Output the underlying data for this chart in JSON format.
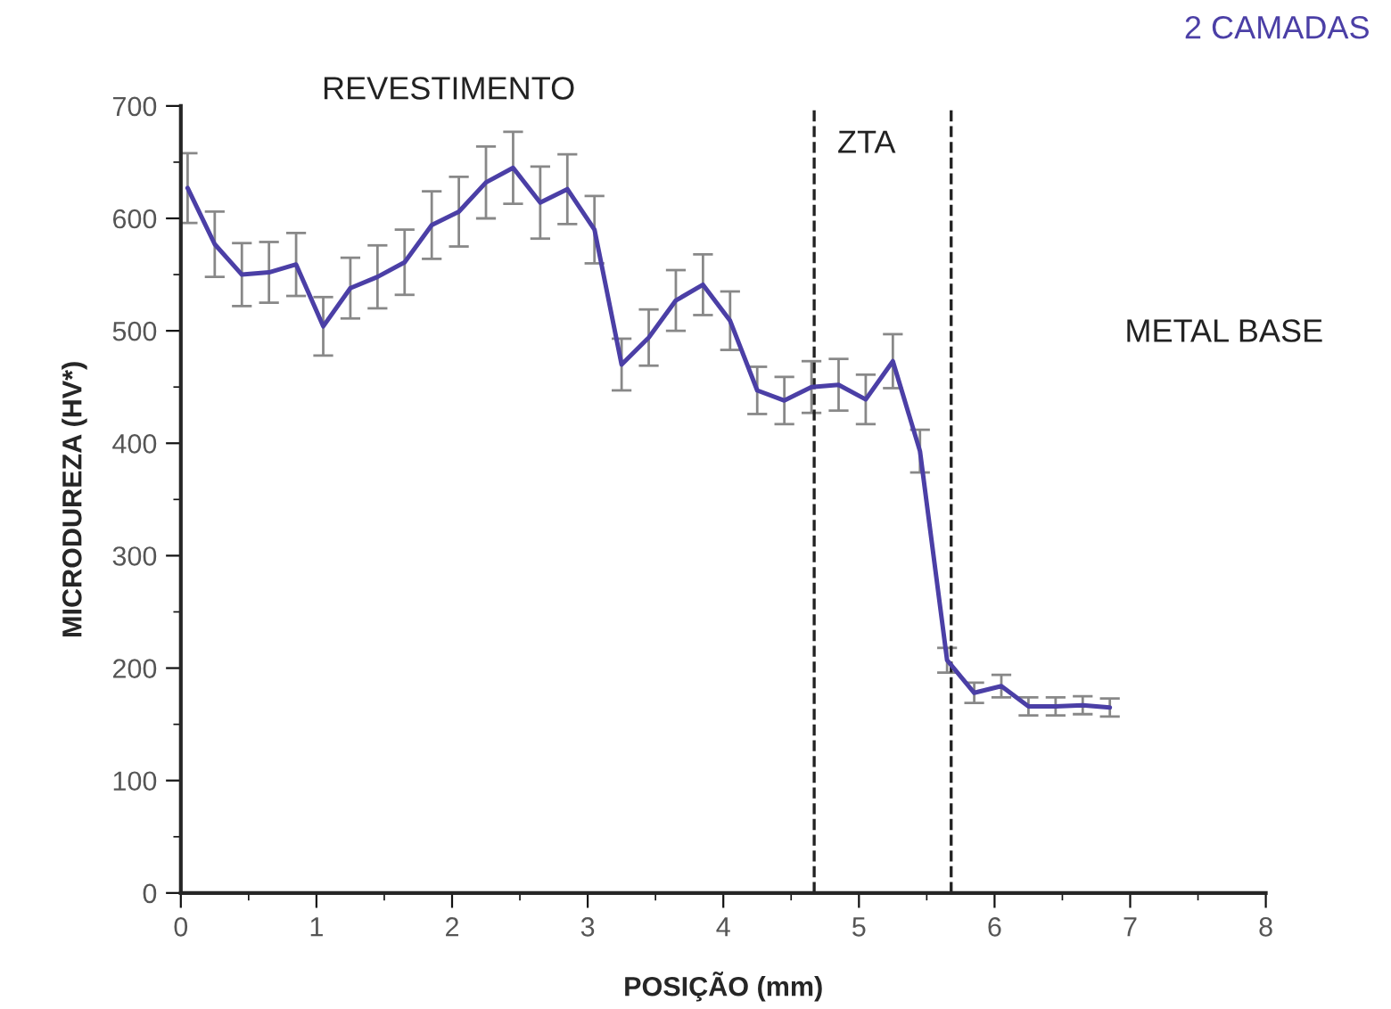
{
  "chart_data": {
    "type": "line",
    "xlabel": "POSIÇÃO (mm)",
    "ylabel": "MICRODUREZA (HV*)",
    "x": [
      0.05,
      0.25,
      0.45,
      0.65,
      0.85,
      1.05,
      1.25,
      1.45,
      1.65,
      1.85,
      2.05,
      2.25,
      2.45,
      2.65,
      2.85,
      3.05,
      3.25,
      3.45,
      3.65,
      3.85,
      4.05,
      4.25,
      4.45,
      4.65,
      4.85,
      5.05,
      5.25,
      5.45,
      5.65,
      5.85,
      6.05,
      6.25,
      6.45,
      6.65,
      6.85
    ],
    "series": [
      {
        "name": "2 CAMADAS",
        "color": "#4b3fa6",
        "values": [
          627,
          577,
          550,
          552,
          559,
          504,
          538,
          548,
          561,
          594,
          606,
          632,
          645,
          614,
          626,
          590,
          470,
          494,
          527,
          541,
          509,
          447,
          438,
          450,
          452,
          439,
          473,
          393,
          207,
          178,
          184,
          166,
          166,
          167,
          165
        ],
        "errors": [
          31,
          29,
          28,
          27,
          28,
          26,
          27,
          28,
          29,
          30,
          31,
          32,
          32,
          32,
          31,
          30,
          23,
          25,
          27,
          27,
          26,
          21,
          21,
          23,
          23,
          22,
          24,
          19,
          11,
          9,
          10,
          8,
          8,
          8,
          8
        ]
      }
    ],
    "xlim": [
      0,
      8
    ],
    "xticks": [
      0,
      1,
      2,
      3,
      4,
      5,
      6,
      7,
      8
    ],
    "ylim": [
      0,
      700
    ],
    "yticks": [
      0,
      100,
      200,
      300,
      400,
      500,
      600,
      700
    ],
    "ref_lines": [
      {
        "axis": "x",
        "value": 4.67,
        "line_style": "dashed",
        "color": "#222222"
      },
      {
        "axis": "x",
        "value": 5.68,
        "line_style": "dashed",
        "color": "#222222"
      }
    ],
    "annotations": [
      "REVESTIMENTO",
      "ZTA",
      "METAL BASE"
    ],
    "grid": false,
    "legend": "top right",
    "marker": "none",
    "line_style": "solid"
  }
}
